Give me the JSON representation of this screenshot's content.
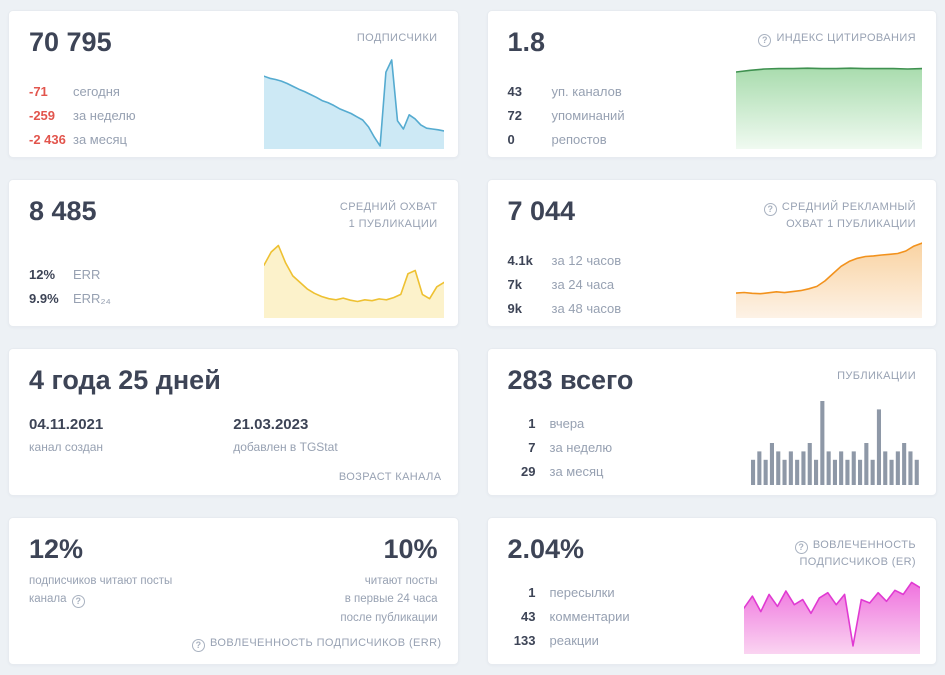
{
  "cards": {
    "subscribers": {
      "value": "70 795",
      "label": "ПОДПИСЧИКИ",
      "stats": [
        {
          "value": "-71",
          "label": "сегодня"
        },
        {
          "value": "-259",
          "label": "за неделю"
        },
        {
          "value": "-2 436",
          "label": "за месяц"
        }
      ],
      "chart": {
        "type": "area",
        "color": "#55abd0",
        "fill_top": "#cde9f5",
        "fill_bottom": "#cde9f5",
        "values": [
          71.5,
          71.45,
          71.42,
          71.38,
          71.32,
          71.25,
          71.18,
          71.12,
          71.05,
          70.98,
          70.9,
          70.85,
          70.78,
          70.7,
          70.64,
          70.58,
          70.5,
          70.42,
          70.25,
          70.0,
          69.78,
          71.6,
          71.9,
          70.4,
          70.2,
          70.55,
          70.45,
          70.3,
          70.22,
          70.2,
          70.18,
          70.15
        ]
      }
    },
    "citation": {
      "value": "1.8",
      "label": "ИНДЕКС ЦИТИРОВАНИЯ",
      "stats": [
        {
          "value": "43",
          "label": "уп. каналов"
        },
        {
          "value": "72",
          "label": "упоминаний"
        },
        {
          "value": "0",
          "label": "репостов"
        }
      ],
      "chart": {
        "type": "area",
        "color": "#3f9150",
        "fill_top": "#a9dcae",
        "fill_bottom": "#f0faf1",
        "min": 0,
        "max": 2,
        "values": [
          1.72,
          1.76,
          1.79,
          1.8,
          1.8,
          1.81,
          1.8,
          1.8,
          1.81,
          1.8,
          1.8,
          1.8,
          1.79,
          1.8
        ]
      }
    },
    "avg_reach": {
      "value": "8 485",
      "label": "СРЕДНИЙ ОХВАТ\n1 ПУБЛИКАЦИИ",
      "stats": [
        {
          "value": "12%",
          "label": "ERR"
        },
        {
          "value": "9.9%",
          "label": "ERR₂₄"
        }
      ],
      "chart": {
        "type": "area",
        "color": "#eec132",
        "fill_top": "#fcf2cb",
        "fill_bottom": "#fcf2cb",
        "min": 7.0,
        "max": 10.5,
        "values": [
          9.3,
          9.9,
          10.2,
          9.4,
          8.8,
          8.5,
          8.2,
          8.0,
          7.85,
          7.75,
          7.7,
          7.78,
          7.68,
          7.62,
          7.7,
          7.66,
          7.74,
          7.7,
          7.8,
          7.95,
          8.9,
          9.05,
          7.95,
          7.75,
          8.3,
          8.5
        ]
      }
    },
    "ad_reach": {
      "value": "7 044",
      "label": "СРЕДНИЙ РЕКЛАМНЫЙ\nОХВАТ 1 ПУБЛИКАЦИИ",
      "stats": [
        {
          "value": "4.1k",
          "label": "за 12 часов"
        },
        {
          "value": "7k",
          "label": "за 24 часа"
        },
        {
          "value": "9k",
          "label": "за 48 часов"
        }
      ],
      "chart": {
        "type": "area",
        "color": "#f2921d",
        "fill_top": "#f9d3a2",
        "fill_bottom": "#fdf2e6",
        "min": 2.2,
        "max": 8.6,
        "values": [
          4.0,
          4.05,
          3.98,
          3.95,
          4.02,
          4.1,
          4.04,
          4.12,
          4.2,
          4.35,
          4.55,
          5.0,
          5.6,
          6.2,
          6.6,
          6.85,
          7.0,
          7.05,
          7.12,
          7.18,
          7.25,
          7.45,
          7.85,
          8.1
        ]
      }
    },
    "age": {
      "value": "4 года 25 дней",
      "label": "ВОЗРАСТ КАНАЛА",
      "created_date": "04.11.2021",
      "created_label": "канал создан",
      "added_date": "21.03.2023",
      "added_label": "добавлен в TGStat"
    },
    "publications": {
      "value": "283 всего",
      "label": "ПУБЛИКАЦИИ",
      "stats": [
        {
          "value": "1",
          "label": "вчера"
        },
        {
          "value": "7",
          "label": "за неделю"
        },
        {
          "value": "29",
          "label": "за месяц"
        }
      ],
      "chart": {
        "type": "bar",
        "color": "#8e98a7",
        "max": 10,
        "values": [
          3,
          4,
          3,
          5,
          4,
          3,
          4,
          3,
          4,
          5,
          3,
          10,
          4,
          3,
          4,
          3,
          4,
          3,
          5,
          3,
          9,
          4,
          3,
          4,
          5,
          4,
          3
        ]
      }
    },
    "err": {
      "left_value": "12%",
      "left_caption": "подписчиков читают посты\nканала",
      "right_value": "10%",
      "right_caption": "читают посты\nв первые 24 часа\nпосле публикации",
      "label": "ВОВЛЕЧЕННОСТЬ ПОДПИСЧИКОВ (ERR)"
    },
    "er": {
      "value": "2.04%",
      "label": "ВОВЛЕЧЕННОСТЬ\nПОДПИСЧИКОВ (ER)",
      "stats": [
        {
          "value": "1",
          "label": "пересылки"
        },
        {
          "value": "43",
          "label": "комментарии"
        },
        {
          "value": "133",
          "label": "реакции"
        }
      ],
      "chart": {
        "type": "area",
        "color": "#e03ad2",
        "fill_top": "#ef72de",
        "fill_bottom": "#fad4f1",
        "min": 0.85,
        "max": 2.95,
        "values": [
          2.1,
          2.45,
          2.0,
          2.5,
          2.15,
          2.6,
          2.2,
          2.35,
          1.95,
          2.4,
          2.55,
          2.2,
          2.5,
          1.0,
          2.35,
          2.25,
          2.55,
          2.3,
          2.62,
          2.5,
          2.85,
          2.7
        ]
      }
    }
  },
  "colors": {
    "background": "#edf1f5",
    "card": "#ffffff",
    "text_dark": "#3d4456",
    "text_gray": "#98a2b3",
    "negative": "#e2554d"
  }
}
